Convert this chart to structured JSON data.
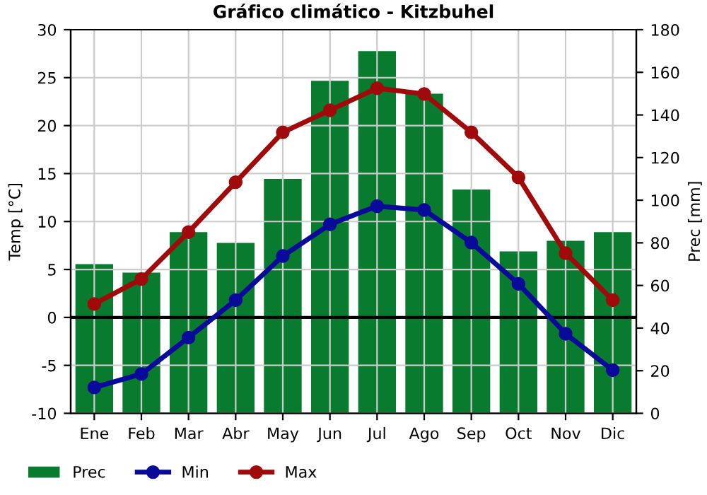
{
  "chart_data": {
    "type": "line",
    "title": "Gráfico climático - Kitzbuhel",
    "ylabel": "Temp [°C]",
    "y2label": "Prec [mm]",
    "categories": [
      "Ene",
      "Feb",
      "Mar",
      "Abr",
      "May",
      "Jun",
      "Jul",
      "Ago",
      "Sep",
      "Oct",
      "Nov",
      "Dic"
    ],
    "series": [
      {
        "name": "Prec",
        "type": "bar",
        "axis": "y2",
        "color": "#087b2f",
        "values": [
          70,
          66,
          85,
          80,
          110,
          156,
          170,
          150,
          105,
          76,
          81,
          85
        ]
      },
      {
        "name": "Min",
        "color": "#0a0a9a",
        "values": [
          -7.3,
          -5.9,
          -2.1,
          1.8,
          6.4,
          9.7,
          11.6,
          11.2,
          7.8,
          3.5,
          -1.7,
          -5.5
        ]
      },
      {
        "name": "Max",
        "color": "#a00a0a",
        "values": [
          1.4,
          4.0,
          8.9,
          14.1,
          19.3,
          21.6,
          23.9,
          23.3,
          19.3,
          14.6,
          6.7,
          1.8
        ]
      }
    ],
    "ylim": [
      -10,
      30
    ],
    "yticks": [
      -10,
      -5,
      0,
      5,
      10,
      15,
      20,
      25,
      30
    ],
    "y2lim": [
      0,
      180
    ],
    "y2ticks": [
      0,
      20,
      40,
      60,
      80,
      100,
      120,
      140,
      160,
      180
    ],
    "ref_lines": [
      {
        "axis": "y",
        "value": 0,
        "color": "#000000"
      }
    ],
    "grid": true,
    "legend": "bottom",
    "marker": "circle",
    "line_style": "solid"
  }
}
